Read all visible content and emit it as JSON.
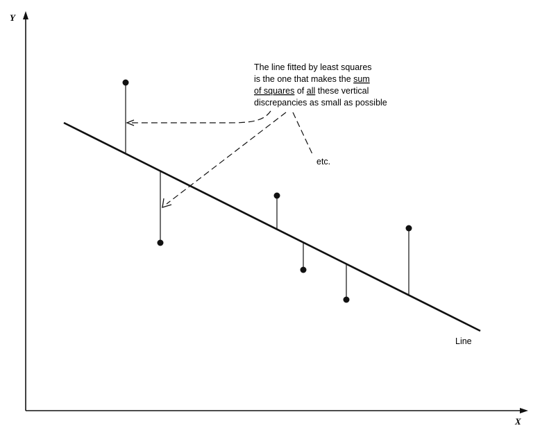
{
  "axes": {
    "x_label": "X",
    "y_label": "Y"
  },
  "annotation": {
    "line1": "The line fitted by least squares",
    "line2_a": "is the one that makes the ",
    "line2_b": "sum",
    "line3_a": "of squares",
    "line3_b": " of ",
    "line3_c": "all",
    "line3_d": " these vertical",
    "line4": "discrepancies as small as possible",
    "etc": "etc."
  },
  "line_label": "Line",
  "colors": {
    "ink": "#111111",
    "background": "#ffffff"
  }
}
